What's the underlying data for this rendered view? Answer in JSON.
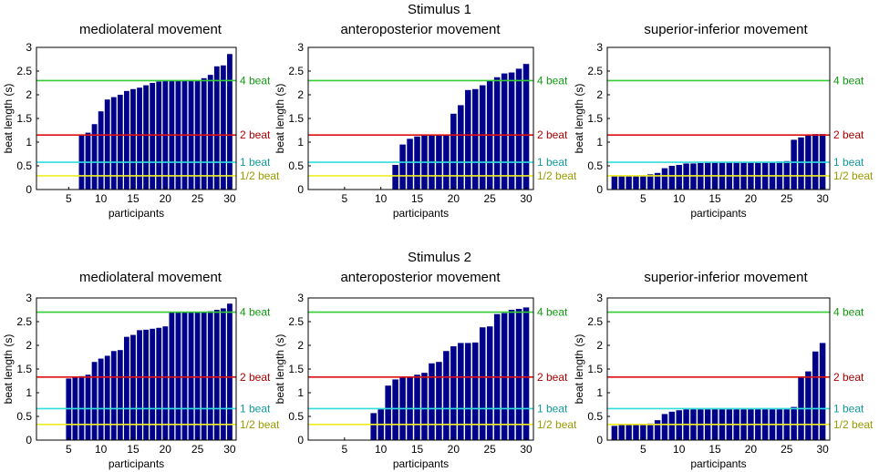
{
  "figure": {
    "stimulus_titles": [
      "Stimulus 1",
      "Stimulus 2"
    ]
  },
  "chart_data": [
    {
      "type": "bar",
      "stimulus": "Stimulus 1",
      "title": "mediolateral movement",
      "xlabel": "participants",
      "ylabel": "beat length (s)",
      "ylim": [
        0,
        3
      ],
      "yticks": [
        "0",
        "0.5",
        "1",
        "1.5",
        "2",
        "2.5",
        "3"
      ],
      "xticks": [
        "5",
        "10",
        "15",
        "20",
        "25",
        "30"
      ],
      "categories": [
        1,
        2,
        3,
        4,
        5,
        6,
        7,
        8,
        9,
        10,
        11,
        12,
        13,
        14,
        15,
        16,
        17,
        18,
        19,
        20,
        21,
        22,
        23,
        24,
        25,
        26,
        27,
        28,
        29,
        30
      ],
      "values": [
        0,
        0,
        0,
        0,
        0,
        0,
        1.15,
        1.2,
        1.38,
        1.65,
        1.9,
        1.95,
        2.0,
        2.08,
        2.12,
        2.15,
        2.2,
        2.25,
        2.28,
        2.3,
        2.3,
        2.3,
        2.3,
        2.3,
        2.3,
        2.35,
        2.42,
        2.6,
        2.62,
        2.86
      ],
      "bar_color": "#00008b",
      "reference_lines": [
        {
          "label": "4 beat",
          "value": 2.3,
          "color": "#33cc33",
          "text_color": "#119911"
        },
        {
          "label": "2 beat",
          "value": 1.15,
          "color": "#dd1111",
          "text_color": "#aa0000"
        },
        {
          "label": "1 beat",
          "value": 0.575,
          "color": "#33dddd",
          "text_color": "#119999"
        },
        {
          "label": "1/2 beat",
          "value": 0.29,
          "color": "#eeee22",
          "text_color": "#999900"
        }
      ]
    },
    {
      "type": "bar",
      "stimulus": "Stimulus 1",
      "title": "anteroposterior movement",
      "xlabel": "participants",
      "ylabel": "beat length (s)",
      "ylim": [
        0,
        3
      ],
      "yticks": [
        "0",
        "0.5",
        "1",
        "1.5",
        "2",
        "2.5",
        "3"
      ],
      "xticks": [
        "5",
        "10",
        "15",
        "20",
        "25",
        "30"
      ],
      "categories": [
        1,
        2,
        3,
        4,
        5,
        6,
        7,
        8,
        9,
        10,
        11,
        12,
        13,
        14,
        15,
        16,
        17,
        18,
        19,
        20,
        21,
        22,
        23,
        24,
        25,
        26,
        27,
        28,
        29,
        30
      ],
      "values": [
        0,
        0,
        0,
        0,
        0,
        0,
        0,
        0,
        0,
        0,
        0,
        0.52,
        0.95,
        1.07,
        1.12,
        1.14,
        1.15,
        1.15,
        1.15,
        1.6,
        1.78,
        2.1,
        2.12,
        2.2,
        2.3,
        2.37,
        2.45,
        2.47,
        2.55,
        2.65
      ],
      "bar_color": "#00008b",
      "reference_lines": [
        {
          "label": "4 beat",
          "value": 2.3,
          "color": "#33cc33",
          "text_color": "#119911"
        },
        {
          "label": "2 beat",
          "value": 1.15,
          "color": "#dd1111",
          "text_color": "#aa0000"
        },
        {
          "label": "1 beat",
          "value": 0.575,
          "color": "#33dddd",
          "text_color": "#119999"
        },
        {
          "label": "1/2 beat",
          "value": 0.29,
          "color": "#eeee22",
          "text_color": "#999900"
        }
      ]
    },
    {
      "type": "bar",
      "stimulus": "Stimulus 1",
      "title": "superior-inferior movement",
      "xlabel": "participants",
      "ylabel": "beat length (s)",
      "ylim": [
        0,
        3
      ],
      "yticks": [
        "0",
        "0.5",
        "1",
        "1.5",
        "2",
        "2.5",
        "3"
      ],
      "xticks": [
        "5",
        "10",
        "15",
        "20",
        "25",
        "30"
      ],
      "categories": [
        1,
        2,
        3,
        4,
        5,
        6,
        7,
        8,
        9,
        10,
        11,
        12,
        13,
        14,
        15,
        16,
        17,
        18,
        19,
        20,
        21,
        22,
        23,
        24,
        25,
        26,
        27,
        28,
        29,
        30
      ],
      "values": [
        0.28,
        0.28,
        0.29,
        0.29,
        0.3,
        0.32,
        0.35,
        0.45,
        0.5,
        0.52,
        0.55,
        0.55,
        0.56,
        0.57,
        0.57,
        0.57,
        0.57,
        0.58,
        0.58,
        0.58,
        0.58,
        0.58,
        0.58,
        0.59,
        0.6,
        1.05,
        1.1,
        1.15,
        1.17,
        1.17
      ],
      "bar_color": "#00008b",
      "reference_lines": [
        {
          "label": "4 beat",
          "value": 2.3,
          "color": "#33cc33",
          "text_color": "#119911"
        },
        {
          "label": "2 beat",
          "value": 1.15,
          "color": "#dd1111",
          "text_color": "#aa0000"
        },
        {
          "label": "1 beat",
          "value": 0.575,
          "color": "#33dddd",
          "text_color": "#119999"
        },
        {
          "label": "1/2 beat",
          "value": 0.29,
          "color": "#eeee22",
          "text_color": "#999900"
        }
      ]
    },
    {
      "type": "bar",
      "stimulus": "Stimulus 2",
      "title": "mediolateral movement",
      "xlabel": "participants",
      "ylabel": "beat length (s)",
      "ylim": [
        0,
        3
      ],
      "yticks": [
        "0",
        "0.5",
        "1",
        "1.5",
        "2",
        "2.5",
        "3"
      ],
      "xticks": [
        "5",
        "10",
        "15",
        "20",
        "25",
        "30"
      ],
      "categories": [
        1,
        2,
        3,
        4,
        5,
        6,
        7,
        8,
        9,
        10,
        11,
        12,
        13,
        14,
        15,
        16,
        17,
        18,
        19,
        20,
        21,
        22,
        23,
        24,
        25,
        26,
        27,
        28,
        29,
        30
      ],
      "values": [
        0,
        0,
        0,
        0,
        1.3,
        1.33,
        1.35,
        1.38,
        1.65,
        1.72,
        1.78,
        1.88,
        1.9,
        2.18,
        2.22,
        2.32,
        2.33,
        2.35,
        2.37,
        2.4,
        2.7,
        2.7,
        2.7,
        2.7,
        2.7,
        2.7,
        2.72,
        2.75,
        2.78,
        2.88
      ],
      "bar_color": "#00008b",
      "reference_lines": [
        {
          "label": "4 beat",
          "value": 2.7,
          "color": "#33cc33",
          "text_color": "#119911"
        },
        {
          "label": "2 beat",
          "value": 1.33,
          "color": "#dd1111",
          "text_color": "#aa0000"
        },
        {
          "label": "1 beat",
          "value": 0.665,
          "color": "#33dddd",
          "text_color": "#119999"
        },
        {
          "label": "1/2 beat",
          "value": 0.33,
          "color": "#eeee22",
          "text_color": "#999900"
        }
      ]
    },
    {
      "type": "bar",
      "stimulus": "Stimulus 2",
      "title": "anteroposterior movement",
      "xlabel": "participants",
      "ylabel": "beat length (s)",
      "ylim": [
        0,
        3
      ],
      "yticks": [
        "0",
        "0.5",
        "1",
        "1.5",
        "2",
        "2.5",
        "3"
      ],
      "xticks": [
        "5",
        "10",
        "15",
        "20",
        "25",
        "30"
      ],
      "categories": [
        1,
        2,
        3,
        4,
        5,
        6,
        7,
        8,
        9,
        10,
        11,
        12,
        13,
        14,
        15,
        16,
        17,
        18,
        19,
        20,
        21,
        22,
        23,
        24,
        25,
        26,
        27,
        28,
        29,
        30
      ],
      "values": [
        0,
        0,
        0,
        0,
        0,
        0,
        0,
        0,
        0.57,
        0.65,
        1.15,
        1.28,
        1.33,
        1.33,
        1.38,
        1.42,
        1.62,
        1.65,
        1.88,
        1.98,
        2.05,
        2.05,
        2.06,
        2.38,
        2.4,
        2.66,
        2.68,
        2.75,
        2.77,
        2.8
      ],
      "bar_color": "#00008b",
      "reference_lines": [
        {
          "label": "4 beat",
          "value": 2.7,
          "color": "#33cc33",
          "text_color": "#119911"
        },
        {
          "label": "2 beat",
          "value": 1.33,
          "color": "#dd1111",
          "text_color": "#aa0000"
        },
        {
          "label": "1 beat",
          "value": 0.665,
          "color": "#33dddd",
          "text_color": "#119999"
        },
        {
          "label": "1/2 beat",
          "value": 0.33,
          "color": "#eeee22",
          "text_color": "#999900"
        }
      ]
    },
    {
      "type": "bar",
      "stimulus": "Stimulus 2",
      "title": "superior-inferior movement",
      "xlabel": "participants",
      "ylabel": "beat length (s)",
      "ylim": [
        0,
        3
      ],
      "yticks": [
        "0",
        "0.5",
        "1",
        "1.5",
        "2",
        "2.5",
        "3"
      ],
      "xticks": [
        "5",
        "10",
        "15",
        "20",
        "25",
        "30"
      ],
      "categories": [
        1,
        2,
        3,
        4,
        5,
        6,
        7,
        8,
        9,
        10,
        11,
        12,
        13,
        14,
        15,
        16,
        17,
        18,
        19,
        20,
        21,
        22,
        23,
        24,
        25,
        26,
        27,
        28,
        29,
        30
      ],
      "values": [
        0.3,
        0.33,
        0.33,
        0.33,
        0.34,
        0.35,
        0.42,
        0.55,
        0.6,
        0.63,
        0.65,
        0.65,
        0.65,
        0.65,
        0.65,
        0.65,
        0.65,
        0.65,
        0.65,
        0.65,
        0.65,
        0.65,
        0.65,
        0.65,
        0.65,
        0.7,
        1.33,
        1.45,
        1.87,
        2.05
      ],
      "bar_color": "#00008b",
      "reference_lines": [
        {
          "label": "4 beat",
          "value": 2.7,
          "color": "#33cc33",
          "text_color": "#119911"
        },
        {
          "label": "2 beat",
          "value": 1.33,
          "color": "#dd1111",
          "text_color": "#aa0000"
        },
        {
          "label": "1 beat",
          "value": 0.665,
          "color": "#33dddd",
          "text_color": "#119999"
        },
        {
          "label": "1/2 beat",
          "value": 0.33,
          "color": "#eeee22",
          "text_color": "#999900"
        }
      ]
    }
  ]
}
